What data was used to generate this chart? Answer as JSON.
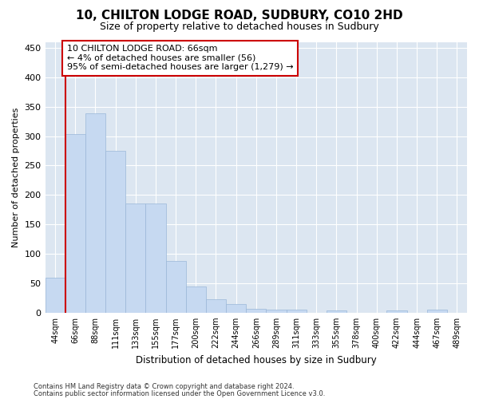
{
  "title1": "10, CHILTON LODGE ROAD, SUDBURY, CO10 2HD",
  "title2": "Size of property relative to detached houses in Sudbury",
  "xlabel": "Distribution of detached houses by size in Sudbury",
  "ylabel": "Number of detached properties",
  "bar_labels": [
    "44sqm",
    "66sqm",
    "88sqm",
    "111sqm",
    "133sqm",
    "155sqm",
    "177sqm",
    "200sqm",
    "222sqm",
    "244sqm",
    "266sqm",
    "289sqm",
    "311sqm",
    "333sqm",
    "355sqm",
    "378sqm",
    "400sqm",
    "422sqm",
    "444sqm",
    "467sqm",
    "489sqm"
  ],
  "bar_values": [
    60,
    303,
    338,
    275,
    185,
    185,
    88,
    45,
    23,
    14,
    7,
    5,
    5,
    0,
    4,
    0,
    0,
    4,
    0,
    5,
    0
  ],
  "bar_color": "#c6d9f1",
  "bar_edge_color": "#9ab7d8",
  "vline_color": "#cc0000",
  "annotation_line1": "10 CHILTON LODGE ROAD: 66sqm",
  "annotation_line2": "← 4% of detached houses are smaller (56)",
  "annotation_line3": "95% of semi-detached houses are larger (1,279) →",
  "annotation_box_color": "#cc0000",
  "ylim": [
    0,
    460
  ],
  "yticks": [
    0,
    50,
    100,
    150,
    200,
    250,
    300,
    350,
    400,
    450
  ],
  "footnote1": "Contains HM Land Registry data © Crown copyright and database right 2024.",
  "footnote2": "Contains public sector information licensed under the Open Government Licence v3.0.",
  "plot_bg_color": "#dce6f1",
  "title1_fontsize": 11,
  "title2_fontsize": 9,
  "tick_fontsize": 7,
  "ylabel_fontsize": 8,
  "xlabel_fontsize": 8.5,
  "annotation_fontsize": 8,
  "footnote_fontsize": 6
}
